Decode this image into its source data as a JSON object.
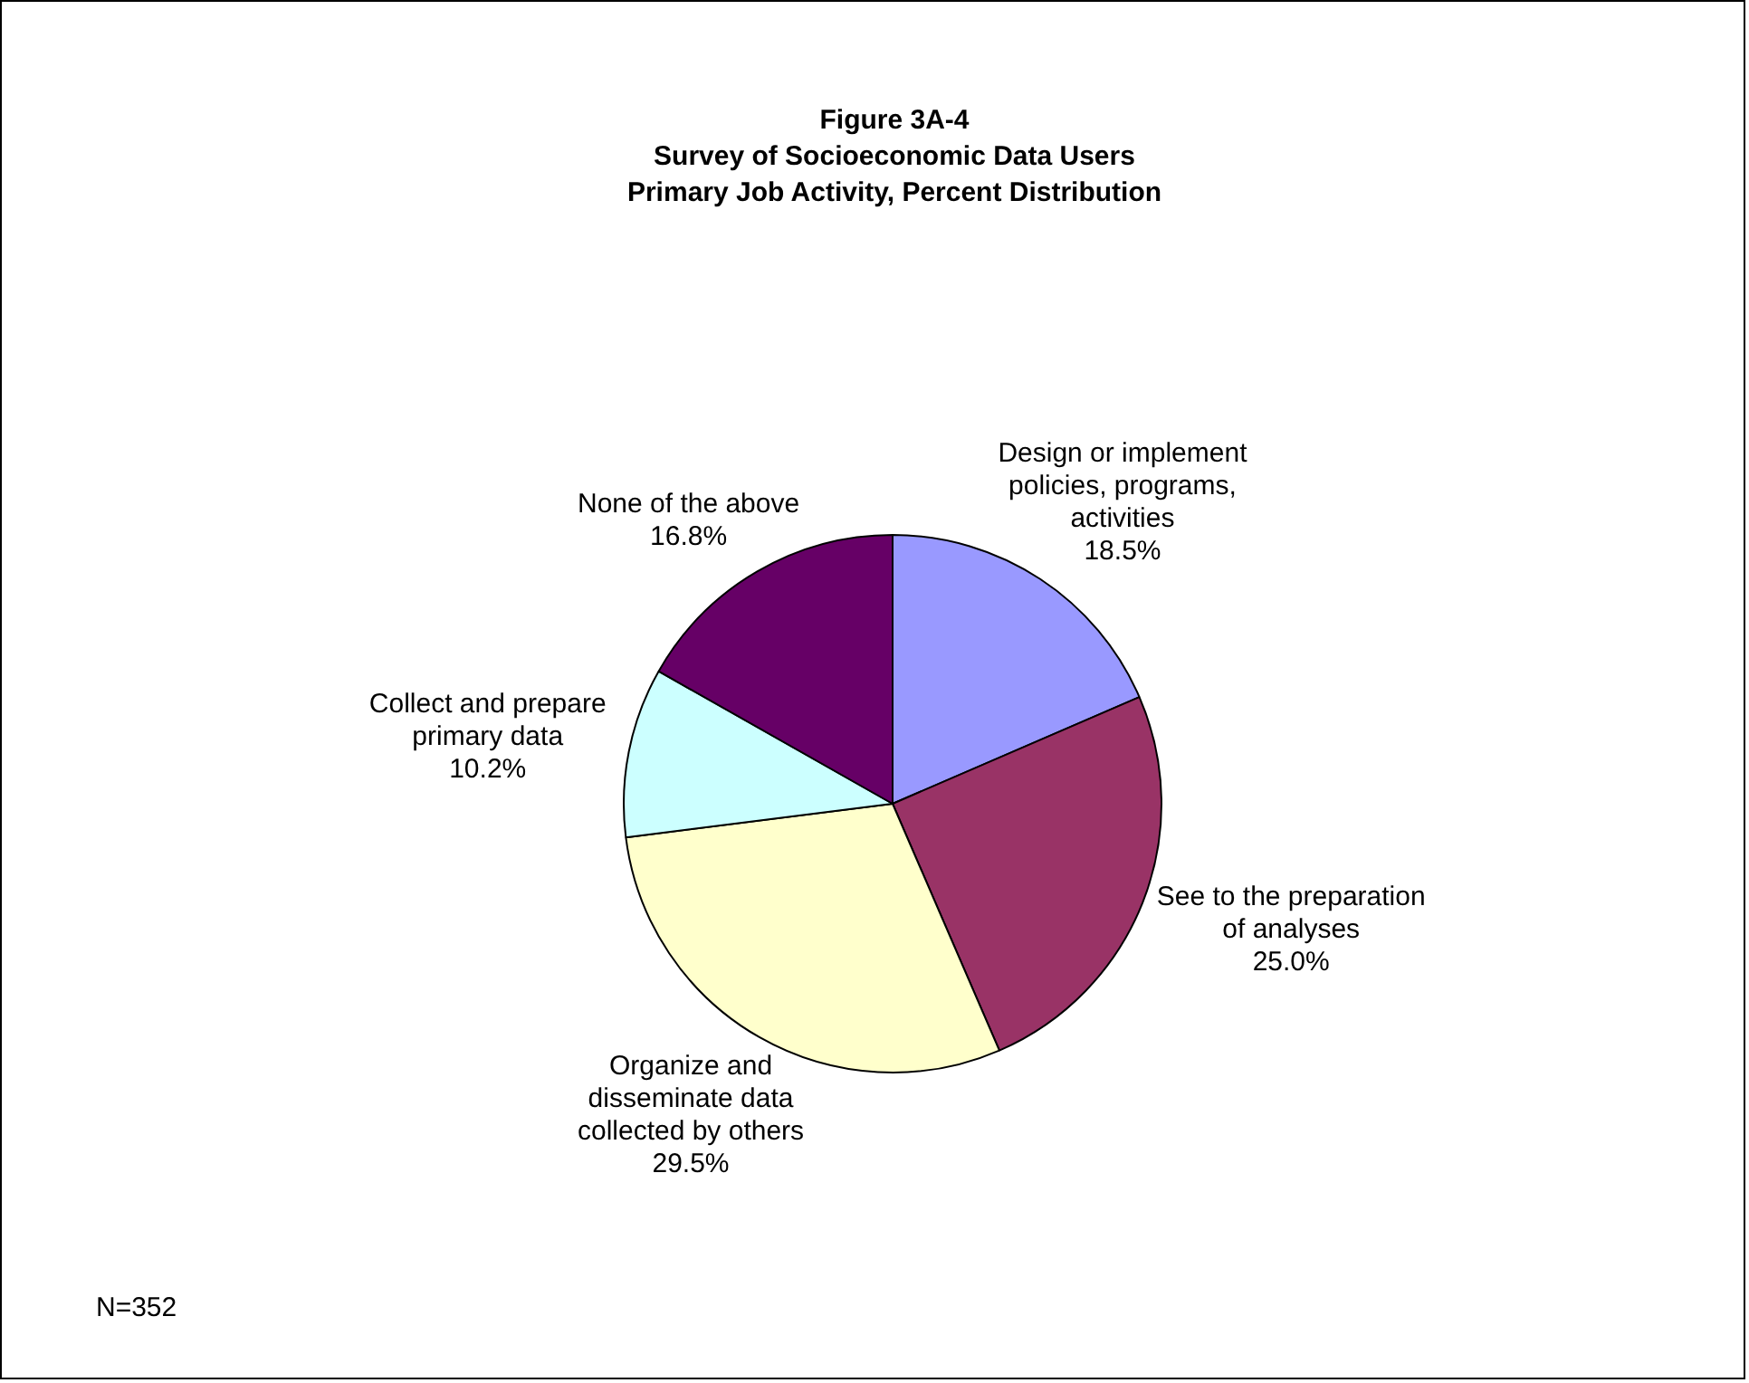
{
  "chart_data": {
    "type": "pie",
    "title": "Figure 3A-4",
    "subtitle": "Survey of Socioeconomic Data Users\nPrimary Job Activity, Percent Distribution",
    "categories": [
      "Design or implement policies, programs, activities",
      "See to the preparation of analyses",
      "Organize and disseminate data collected by others",
      "Collect and prepare primary data",
      "None of the above"
    ],
    "values": [
      18.5,
      25.0,
      29.5,
      10.2,
      16.8
    ],
    "value_labels": [
      "18.5%",
      "25.0%",
      "29.5%",
      "10.2%",
      "16.8%"
    ],
    "colors": [
      "#9999ff",
      "#993366",
      "#ffffcc",
      "#ccffff",
      "#660066"
    ],
    "annotations": [
      "N=352"
    ],
    "legend": false
  }
}
